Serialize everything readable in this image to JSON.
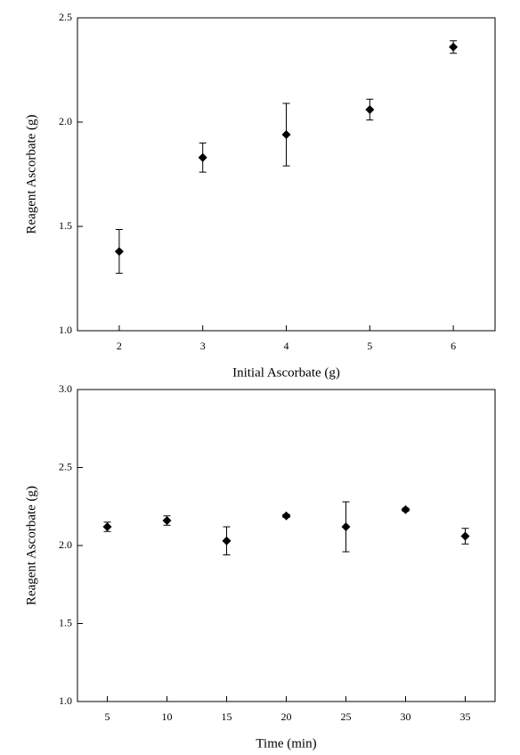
{
  "chart_data": [
    {
      "type": "scatter",
      "x_label": "Initial Ascorbate (g)",
      "y_label": "Reagent Ascorbate (g)",
      "x": [
        2,
        3,
        4,
        5,
        6
      ],
      "values": [
        1.38,
        1.83,
        1.94,
        2.06,
        2.36
      ],
      "errors": [
        0.105,
        0.07,
        0.15,
        0.05,
        0.03
      ],
      "color": "#000000",
      "xlim": [
        1.5,
        6.5
      ],
      "ylim": [
        1.0,
        2.5
      ],
      "xticks": [
        2,
        3,
        4,
        5,
        6
      ],
      "yticks": [
        {
          "value": 1.0,
          "label": "1.0"
        },
        {
          "value": 1.5,
          "label": "1.5"
        },
        {
          "value": 2.0,
          "label": "2.0"
        },
        {
          "value": 2.5,
          "label": "2.5"
        }
      ]
    },
    {
      "type": "scatter",
      "x_label": "Time (min)",
      "y_label": "Reagent Ascorbate (g)",
      "x": [
        5,
        10,
        15,
        20,
        25,
        30,
        35
      ],
      "values": [
        2.12,
        2.16,
        2.03,
        2.19,
        2.12,
        2.23,
        2.06
      ],
      "errors": [
        0.03,
        0.03,
        0.09,
        0.01,
        0.16,
        0.01,
        0.05
      ],
      "color": "#000000",
      "xlim": [
        2.5,
        37.5
      ],
      "ylim": [
        1.0,
        3.0
      ],
      "xticks": [
        5,
        10,
        15,
        20,
        25,
        30,
        35
      ],
      "yticks": [
        {
          "value": 1.0,
          "label": "1.0"
        },
        {
          "value": 1.5,
          "label": "1.5"
        },
        {
          "value": 2.0,
          "label": "2.0"
        },
        {
          "value": 2.5,
          "label": "2.5"
        },
        {
          "value": 3.0,
          "label": "3.0"
        }
      ]
    }
  ]
}
